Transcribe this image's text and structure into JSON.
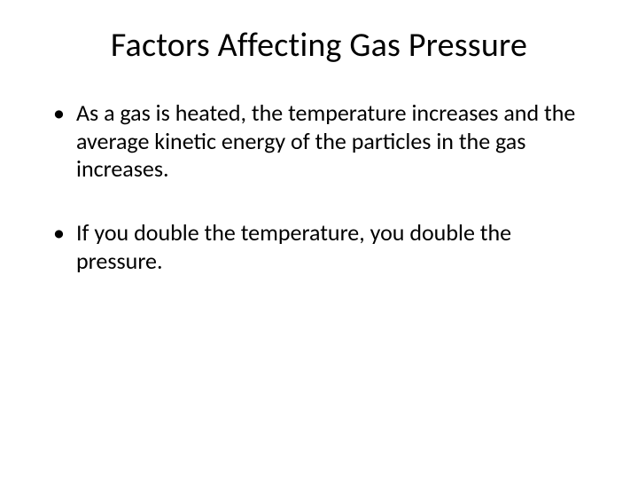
{
  "slide": {
    "title": "Factors Affecting Gas Pressure",
    "bullets": [
      "As a gas is heated, the temperature increases and the average kinetic energy of the particles in the gas increases.",
      "If you double the temperature, you double the pressure."
    ]
  },
  "style": {
    "background_color": "#ffffff",
    "text_color": "#000000",
    "title_fontsize": 38,
    "body_fontsize": 26,
    "font_family": "Calibri"
  }
}
